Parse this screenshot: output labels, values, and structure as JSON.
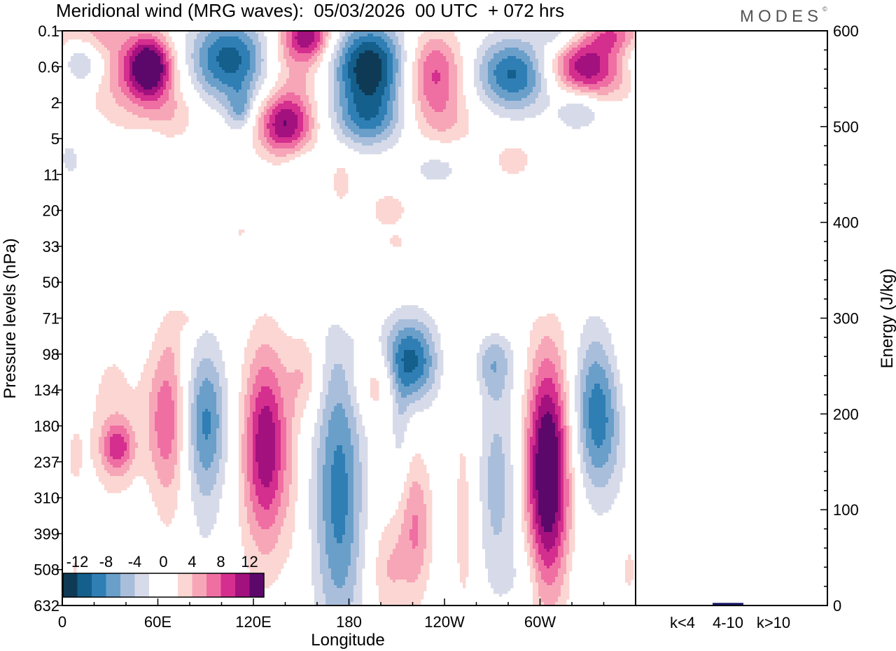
{
  "header": {
    "title": "Meridional wind (MRG waves):  05/03/2026  00 UTC  + 072 hrs",
    "brand": "MODES",
    "brand_mark": "©"
  },
  "chart_data": [
    {
      "type": "heatmap",
      "title": "Meridional wind (MRG waves)",
      "xlabel": "Longitude",
      "ylabel": "Pressure levels (hPa)",
      "x_ticks": [
        "0",
        "60E",
        "120E",
        "180",
        "120W",
        "60W"
      ],
      "x_range": [
        0,
        360
      ],
      "y_ticks": [
        "0.1",
        "0.6",
        "2",
        "5",
        "11",
        "20",
        "33",
        "50",
        "71",
        "98",
        "134",
        "180",
        "237",
        "310",
        "399",
        "508",
        "632"
      ],
      "colorbar": {
        "tick_labels": [
          "-12",
          "-8",
          "-4",
          "0",
          "4",
          "8",
          "12"
        ],
        "level_colors": [
          "#0f3a55",
          "#145f8c",
          "#2f7fb5",
          "#6a9fca",
          "#a9bedb",
          "#d7dbe9",
          "#ffffff",
          "#ffffff",
          "#fbd6d2",
          "#f7a6b8",
          "#ef6fa3",
          "#d42e8e",
          "#a3117e",
          "#5c086b"
        ]
      },
      "blobs": [
        {
          "lon": 55,
          "lev": 1.0,
          "rx": 14,
          "ry": 0.85,
          "v": 13
        },
        {
          "lon": 42,
          "lev": 1.3,
          "rx": 28,
          "ry": 1.4,
          "v": 5
        },
        {
          "lon": 12,
          "lev": 0.9,
          "rx": 14,
          "ry": 0.7,
          "v": -6
        },
        {
          "lon": 18,
          "lev": 0.1,
          "rx": 20,
          "ry": 0.6,
          "v": 4
        },
        {
          "lon": 105,
          "lev": 0.8,
          "rx": 26,
          "ry": 1.2,
          "v": -11
        },
        {
          "lon": 148,
          "lev": 0.6,
          "rx": 20,
          "ry": 1.2,
          "v": 6
        },
        {
          "lon": 155,
          "lev": 0.1,
          "rx": 14,
          "ry": 0.6,
          "v": 8
        },
        {
          "lon": 193,
          "lev": 1.0,
          "rx": 24,
          "ry": 1.2,
          "v": -14
        },
        {
          "lon": 233,
          "lev": 1.2,
          "rx": 20,
          "ry": 1.2,
          "v": 9
        },
        {
          "lon": 285,
          "lev": 1.2,
          "rx": 26,
          "ry": 1.0,
          "v": -11
        },
        {
          "lon": 330,
          "lev": 1.0,
          "rx": 28,
          "ry": 0.9,
          "v": 13
        },
        {
          "lon": 312,
          "lev": 0.1,
          "rx": 14,
          "ry": 0.5,
          "v": -4
        },
        {
          "lon": 345,
          "lev": 0.1,
          "rx": 14,
          "ry": 0.5,
          "v": 6
        },
        {
          "lon": 350,
          "lev": 0.8,
          "rx": 20,
          "ry": 0.8,
          "v": -3
        },
        {
          "lon": 140,
          "lev": 2.6,
          "rx": 18,
          "ry": 0.9,
          "v": 12
        },
        {
          "lon": 112,
          "lev": 2.2,
          "rx": 8,
          "ry": 0.6,
          "v": -5
        },
        {
          "lon": 192,
          "lev": 2.5,
          "rx": 22,
          "ry": 0.8,
          "v": -7
        },
        {
          "lon": 70,
          "lev": 2.3,
          "rx": 18,
          "ry": 0.8,
          "v": 3
        },
        {
          "lon": 240,
          "lev": 2.6,
          "rx": 22,
          "ry": 0.8,
          "v": 3
        },
        {
          "lon": 325,
          "lev": 2.2,
          "rx": 14,
          "ry": 0.6,
          "v": -5
        },
        {
          "lon": 350,
          "lev": 3.0,
          "rx": 10,
          "ry": 0.6,
          "v": -2
        },
        {
          "lon": 5,
          "lev": 3.6,
          "rx": 6,
          "ry": 0.5,
          "v": -3
        },
        {
          "lon": 55,
          "lev": 3.2,
          "rx": 8,
          "ry": 0.4,
          "v": -2
        },
        {
          "lon": 150,
          "lev": 3.8,
          "rx": 12,
          "ry": 0.6,
          "v": -2
        },
        {
          "lon": 235,
          "lev": 3.8,
          "rx": 18,
          "ry": 0.6,
          "v": -3
        },
        {
          "lon": 283,
          "lev": 3.6,
          "rx": 14,
          "ry": 0.6,
          "v": 3
        },
        {
          "lon": 330,
          "lev": 3.2,
          "rx": 10,
          "ry": 0.4,
          "v": 2
        },
        {
          "lon": 175,
          "lev": 4.2,
          "rx": 8,
          "ry": 0.8,
          "v": 3
        },
        {
          "lon": 205,
          "lev": 5.0,
          "rx": 14,
          "ry": 0.6,
          "v": 3
        },
        {
          "lon": 310,
          "lev": 5.0,
          "rx": 8,
          "ry": 0.7,
          "v": -2
        },
        {
          "lon": 112,
          "lev": 5.6,
          "rx": 10,
          "ry": 0.3,
          "v": 2
        },
        {
          "lon": 210,
          "lev": 5.9,
          "rx": 10,
          "ry": 0.3,
          "v": 2
        },
        {
          "lon": 77,
          "lev": 8.0,
          "rx": 8,
          "ry": 0.3,
          "v": 2
        },
        {
          "lon": 20,
          "lev": 8.2,
          "rx": 18,
          "ry": 0.4,
          "v": -2
        },
        {
          "lon": 180,
          "lev": 8.0,
          "rx": 10,
          "ry": 0.5,
          "v": 1
        },
        {
          "lon": 272,
          "lev": 7.9,
          "rx": 12,
          "ry": 0.7,
          "v": 2
        },
        {
          "lon": 70,
          "lev": 8.6,
          "rx": 8,
          "ry": 0.7,
          "v": 1
        },
        {
          "lon": 7,
          "lev": 12.0,
          "rx": 8,
          "ry": 1.3,
          "v": 2
        },
        {
          "lon": 35,
          "lev": 11.6,
          "rx": 10,
          "ry": 0.7,
          "v": 7
        },
        {
          "lon": 32,
          "lev": 11.0,
          "rx": 16,
          "ry": 2.6,
          "v": 3
        },
        {
          "lon": 65,
          "lev": 10.8,
          "rx": 14,
          "ry": 2.0,
          "v": 6
        },
        {
          "lon": 67,
          "lev": 11.5,
          "rx": 10,
          "ry": 4.0,
          "v": 2
        },
        {
          "lon": 90,
          "lev": 10.8,
          "rx": 14,
          "ry": 2.0,
          "v": -7
        },
        {
          "lon": 90,
          "lev": 12.5,
          "rx": 12,
          "ry": 3.5,
          "v": -2
        },
        {
          "lon": 128,
          "lev": 11.5,
          "rx": 14,
          "ry": 2.6,
          "v": 10
        },
        {
          "lon": 126,
          "lev": 12.5,
          "rx": 18,
          "ry": 4.0,
          "v": 2
        },
        {
          "lon": 153,
          "lev": 9.6,
          "rx": 10,
          "ry": 1.2,
          "v": 4
        },
        {
          "lon": 145,
          "lev": 12.5,
          "rx": 6,
          "ry": 3.5,
          "v": 1
        },
        {
          "lon": 173,
          "lev": 12.8,
          "rx": 16,
          "ry": 4.2,
          "v": -7
        },
        {
          "lon": 176,
          "lev": 13.2,
          "rx": 14,
          "ry": 4.2,
          "v": -2
        },
        {
          "lon": 198,
          "lev": 9.8,
          "rx": 14,
          "ry": 1.0,
          "v": 5
        },
        {
          "lon": 218,
          "lev": 9.2,
          "rx": 18,
          "ry": 1.2,
          "v": -11
        },
        {
          "lon": 222,
          "lev": 13.8,
          "rx": 10,
          "ry": 2.0,
          "v": 6
        },
        {
          "lon": 205,
          "lev": 15.0,
          "rx": 12,
          "ry": 1.5,
          "v": 4
        },
        {
          "lon": 212,
          "lev": 11.0,
          "rx": 6,
          "ry": 1.5,
          "v": -3
        },
        {
          "lon": 253,
          "lev": 13.5,
          "rx": 9,
          "ry": 3.8,
          "v": 3
        },
        {
          "lon": 273,
          "lev": 12.6,
          "rx": 14,
          "ry": 3.2,
          "v": -5
        },
        {
          "lon": 268,
          "lev": 9.2,
          "rx": 14,
          "ry": 1.0,
          "v": -6
        },
        {
          "lon": 256,
          "lev": 9.0,
          "rx": 16,
          "ry": 1.5,
          "v": 3
        },
        {
          "lon": 305,
          "lev": 12.2,
          "rx": 14,
          "ry": 3.2,
          "v": 14
        },
        {
          "lon": 304,
          "lev": 13.0,
          "rx": 14,
          "ry": 3.5,
          "v": 2
        },
        {
          "lon": 337,
          "lev": 10.5,
          "rx": 16,
          "ry": 2.3,
          "v": -11
        },
        {
          "lon": 348,
          "lev": 9.5,
          "rx": 20,
          "ry": 2.0,
          "v": 3
        },
        {
          "lon": 300,
          "lev": 7.6,
          "rx": 8,
          "ry": 0.3,
          "v": -2
        },
        {
          "lon": 8,
          "lev": 15.0,
          "rx": 10,
          "ry": 1.0,
          "v": 2
        },
        {
          "lon": 355,
          "lev": 15.0,
          "rx": 5,
          "ry": 1.2,
          "v": 2
        },
        {
          "lon": 290,
          "lev": 15.2,
          "rx": 10,
          "ry": 1.0,
          "v": -2
        },
        {
          "lon": 325,
          "lev": 15.2,
          "rx": 6,
          "ry": 0.8,
          "v": -2
        }
      ]
    },
    {
      "type": "bar",
      "categories": [
        "k<4",
        "4-10",
        "k>10"
      ],
      "values": [
        0,
        2,
        0
      ],
      "ylabel": "Energy (J/kg)",
      "ylim": [
        0,
        600
      ],
      "y_ticks": [
        "0",
        "100",
        "200",
        "300",
        "400",
        "500",
        "600"
      ],
      "bar_color": "#1a1a6e"
    }
  ]
}
